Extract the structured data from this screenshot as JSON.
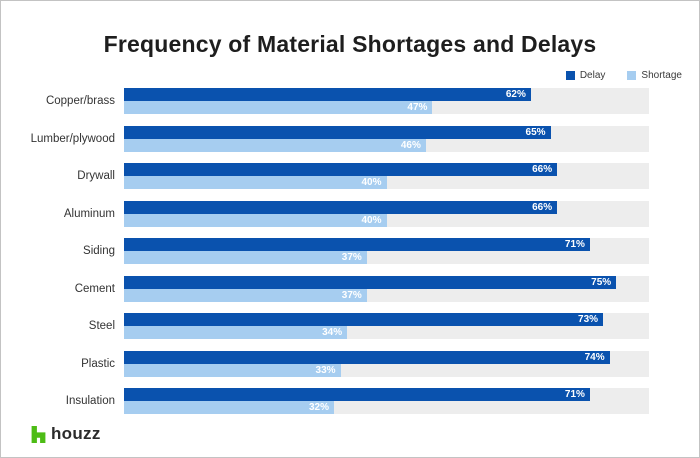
{
  "chart_data": {
    "type": "bar",
    "orientation": "horizontal",
    "title": "Frequency of Material Shortages and Delays",
    "categories": [
      "Copper/brass",
      "Lumber/plywood",
      "Drywall",
      "Aluminum",
      "Siding",
      "Cement",
      "Steel",
      "Plastic",
      "Insulation"
    ],
    "series": [
      {
        "name": "Delay",
        "color": "#0a52ae",
        "values": [
          62,
          65,
          66,
          66,
          71,
          75,
          73,
          74,
          71
        ]
      },
      {
        "name": "Shortage",
        "color": "#a6cdf0",
        "values": [
          47,
          46,
          40,
          40,
          37,
          37,
          34,
          33,
          32
        ]
      }
    ],
    "value_suffix": "%",
    "xlim": [
      0,
      80
    ],
    "grid": false,
    "legend_position": "top-right",
    "track_color": "#ededed",
    "value_label_color": "#ffffff",
    "xlabel": "",
    "ylabel": ""
  },
  "footer": {
    "brand": "houzz",
    "brand_color": "#4dbc15"
  }
}
